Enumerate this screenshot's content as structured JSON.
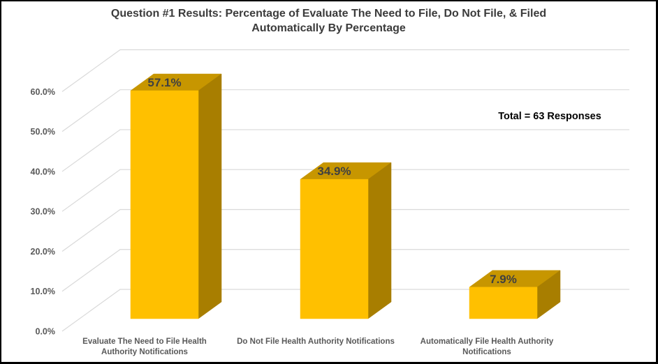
{
  "chart_data": {
    "type": "bar",
    "effect": "3d",
    "title": "Question #1 Results: Percentage of Evaluate The Need to File, Do Not File, & Filed Automatically By Percentage",
    "title_lines": [
      "Question #1 Results: Percentage of Evaluate The Need to File, Do Not File, & Filed",
      "Automatically By Percentage"
    ],
    "categories": [
      "Evaluate The Need to File Health Authority Notifications",
      "Do Not File Health Authority Notifications",
      "Automatically File Health Authority Notifications"
    ],
    "category_label_lines": [
      [
        "Evaluate The Need to File Health",
        "Authority Notifications"
      ],
      [
        "Do Not File Health Authority Notifications"
      ],
      [
        "Automatically File Health Authority",
        "Notifications"
      ]
    ],
    "values": [
      57.1,
      34.9,
      7.9
    ],
    "data_labels": [
      "57.1%",
      "34.9%",
      "7.9%"
    ],
    "annotation": "Total = 63 Responses",
    "yticks": [
      0,
      10,
      20,
      30,
      40,
      50,
      60
    ],
    "ytick_labels": [
      "0.0%",
      "10.0%",
      "20.0%",
      "30.0%",
      "40.0%",
      "50.0%",
      "60.0%"
    ],
    "ylim": [
      0,
      70
    ],
    "grid": true,
    "legend": "none",
    "colors": {
      "bar_front": "#FFC000",
      "bar_top": "#C79600",
      "bar_side": "#A87E00",
      "gridline": "#D9D9D9",
      "title_text": "#3B3B3B",
      "axis_label_text": "#595959",
      "data_label_text": "#404040",
      "annotation_text": "#000000",
      "frame_border": "#000000",
      "background": "#FFFFFF"
    }
  }
}
